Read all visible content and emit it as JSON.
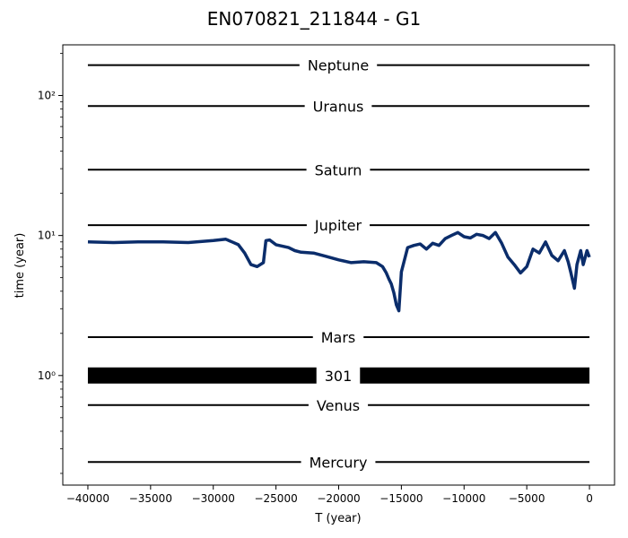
{
  "chart_data": {
    "type": "line",
    "title": "EN070821_211844 - G1",
    "xlabel": "T (year)",
    "ylabel": "time (year)",
    "xlim": [
      -42000,
      2000
    ],
    "ylim": [
      0.165,
      230
    ],
    "yscale": "log",
    "grid": false,
    "legend": "none",
    "x_ticks": [
      -40000,
      -35000,
      -30000,
      -25000,
      -20000,
      -15000,
      -10000,
      -5000,
      0
    ],
    "x_tick_labels": [
      "−40000",
      "−35000",
      "−30000",
      "−25000",
      "−20000",
      "−15000",
      "−10000",
      "−5000",
      "0"
    ],
    "y_ticks": [
      1,
      10,
      100
    ],
    "y_tick_labels": [
      "10⁰",
      "10¹",
      "10²"
    ],
    "reference_lines": [
      {
        "label": "Neptune",
        "y": 164.8
      },
      {
        "label": "Uranus",
        "y": 84.0
      },
      {
        "label": "Saturn",
        "y": 29.5
      },
      {
        "label": "Jupiter",
        "y": 11.86
      },
      {
        "label": "Mars",
        "y": 1.88
      },
      {
        "label": "301",
        "y": 1.0,
        "thick": true
      },
      {
        "label": "Venus",
        "y": 0.615
      },
      {
        "label": "Mercury",
        "y": 0.241
      }
    ],
    "x_extent": [
      -40000,
      0
    ],
    "series": [
      {
        "color": "#0b2d6b",
        "x": [
          -40000,
          -38000,
          -36000,
          -34000,
          -32000,
          -30000,
          -29000,
          -28500,
          -28000,
          -27500,
          -27000,
          -26500,
          -26000,
          -25800,
          -25500,
          -25000,
          -24000,
          -23500,
          -23000,
          -22000,
          -21000,
          -20000,
          -19000,
          -18000,
          -17000,
          -16500,
          -16200,
          -16000,
          -15800,
          -15600,
          -15400,
          -15200,
          -15000,
          -14500,
          -14000,
          -13500,
          -13000,
          -12500,
          -12000,
          -11500,
          -11000,
          -10500,
          -10000,
          -9500,
          -9000,
          -8500,
          -8000,
          -7500,
          -7000,
          -6500,
          -6000,
          -5500,
          -5000,
          -4500,
          -4000,
          -3500,
          -3000,
          -2500,
          -2000,
          -1700,
          -1500,
          -1200,
          -1000,
          -700,
          -500,
          -200,
          0
        ],
        "y": [
          9.0,
          8.9,
          9.0,
          9.0,
          8.9,
          9.2,
          9.4,
          9.0,
          8.6,
          7.5,
          6.2,
          6.0,
          6.4,
          9.2,
          9.3,
          8.6,
          8.2,
          7.8,
          7.6,
          7.5,
          7.1,
          6.7,
          6.4,
          6.5,
          6.4,
          6.0,
          5.4,
          4.9,
          4.5,
          3.9,
          3.2,
          2.9,
          5.5,
          8.2,
          8.5,
          8.7,
          8.0,
          8.8,
          8.5,
          9.5,
          10.0,
          10.5,
          9.8,
          9.6,
          10.2,
          10.0,
          9.5,
          10.5,
          8.8,
          7.0,
          6.2,
          5.4,
          6.0,
          8.0,
          7.5,
          9.0,
          7.2,
          6.6,
          7.8,
          6.5,
          5.5,
          4.2,
          6.2,
          7.8,
          6.2,
          7.8,
          7.0
        ]
      }
    ]
  }
}
